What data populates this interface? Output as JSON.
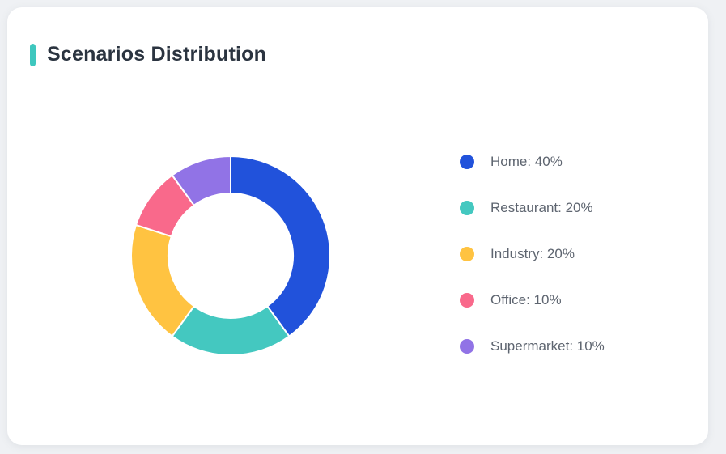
{
  "page": {
    "background_color": "#EFF1F4",
    "card_background_color": "#FFFFFF"
  },
  "header": {
    "title": "Scenarios Distribution",
    "accent_bar_color": "#3EC7BE",
    "title_color": "#2B3440"
  },
  "chart_data": {
    "type": "pie",
    "variant": "donut",
    "title": "Scenarios Distribution",
    "categories": [
      "Home",
      "Restaurant",
      "Industry",
      "Office",
      "Supermarket"
    ],
    "values": [
      40,
      20,
      20,
      10,
      10
    ],
    "unit": "%",
    "colors": [
      "#2152DB",
      "#44C8C0",
      "#FFC341",
      "#F9698B",
      "#9173E6"
    ],
    "start_angle_deg": 0,
    "direction": "clockwise",
    "inner_radius_ratio": 0.63,
    "segment_gap_color": "#FFFFFF",
    "legend_position": "right",
    "legend": [
      {
        "label": "Home",
        "value": 40,
        "text": "Home: 40%",
        "color": "#2152DB"
      },
      {
        "label": "Restaurant",
        "value": 20,
        "text": "Restaurant: 20%",
        "color": "#44C8C0"
      },
      {
        "label": "Industry",
        "value": 20,
        "text": "Industry: 20%",
        "color": "#FFC341"
      },
      {
        "label": "Office",
        "value": 10,
        "text": "Office: 10%",
        "color": "#F9698B"
      },
      {
        "label": "Supermarket",
        "value": 10,
        "text": "Supermarket: 10%",
        "color": "#9173E6"
      }
    ]
  }
}
